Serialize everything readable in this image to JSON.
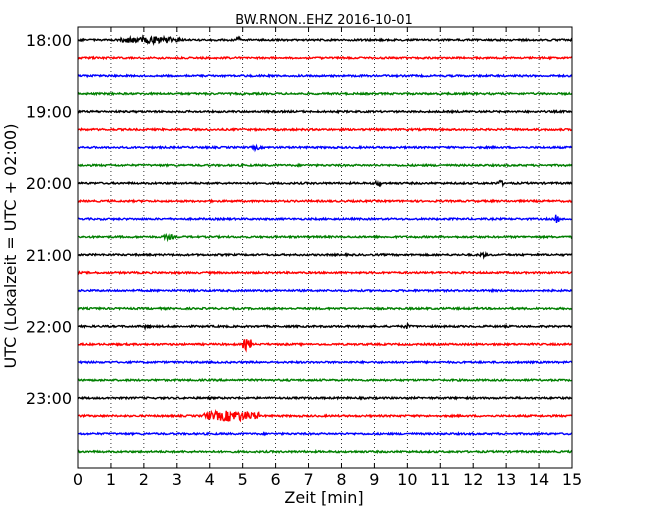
{
  "chart_data": {
    "type": "line",
    "title": "BW.RNON..EHZ 2016-10-01",
    "xlabel": "Zeit  [min]",
    "ylabel": "UTC (Lokalzeit = UTC + 02:00)",
    "xlim": [
      0,
      15
    ],
    "xticks": [
      "0",
      "1",
      "2",
      "3",
      "4",
      "5",
      "6",
      "7",
      "8",
      "9",
      "10",
      "11",
      "12",
      "13",
      "14",
      "15"
    ],
    "y_tick_labels": [
      {
        "row": 0,
        "label": "18:00"
      },
      {
        "row": 4,
        "label": "19:00"
      },
      {
        "row": 8,
        "label": "20:00"
      },
      {
        "row": 12,
        "label": "21:00"
      },
      {
        "row": 16,
        "label": "22:00"
      },
      {
        "row": 20,
        "label": "23:00"
      }
    ],
    "row_minutes": 15,
    "start_time": "18:00",
    "color_cycle": [
      "#000000",
      "#ff0000",
      "#0000ff",
      "#007f00"
    ],
    "grid": {
      "vertical_dotted": true
    },
    "traces": [
      {
        "start": "18:00",
        "color": "#000000",
        "events": [
          {
            "x0": 1.3,
            "x1": 3.1,
            "amp": 3
          },
          {
            "x0": 4.8,
            "x1": 4.95,
            "amp": 2
          }
        ]
      },
      {
        "start": "18:15",
        "color": "#ff0000",
        "events": []
      },
      {
        "start": "18:30",
        "color": "#0000ff",
        "events": []
      },
      {
        "start": "18:45",
        "color": "#007f00",
        "events": []
      },
      {
        "start": "19:00",
        "color": "#000000",
        "events": []
      },
      {
        "start": "19:15",
        "color": "#ff0000",
        "events": []
      },
      {
        "start": "19:30",
        "color": "#0000ff",
        "events": [
          {
            "x0": 5.3,
            "x1": 5.5,
            "amp": 2
          }
        ]
      },
      {
        "start": "19:45",
        "color": "#007f00",
        "events": []
      },
      {
        "start": "20:00",
        "color": "#000000",
        "events": [
          {
            "x0": 9.0,
            "x1": 9.2,
            "amp": 2.5
          },
          {
            "x0": 12.7,
            "x1": 12.9,
            "amp": 2.5
          }
        ]
      },
      {
        "start": "20:15",
        "color": "#ff0000",
        "events": []
      },
      {
        "start": "20:30",
        "color": "#0000ff",
        "events": [
          {
            "x0": 14.45,
            "x1": 14.6,
            "amp": 4
          }
        ]
      },
      {
        "start": "20:45",
        "color": "#007f00",
        "events": [
          {
            "x0": 2.6,
            "x1": 2.9,
            "amp": 2
          }
        ]
      },
      {
        "start": "21:00",
        "color": "#000000",
        "events": [
          {
            "x0": 12.2,
            "x1": 12.4,
            "amp": 2
          }
        ]
      },
      {
        "start": "21:15",
        "color": "#ff0000",
        "events": []
      },
      {
        "start": "21:30",
        "color": "#0000ff",
        "events": []
      },
      {
        "start": "21:45",
        "color": "#007f00",
        "events": []
      },
      {
        "start": "22:00",
        "color": "#000000",
        "events": [
          {
            "x0": 2.0,
            "x1": 2.2,
            "amp": 2
          },
          {
            "x0": 9.9,
            "x1": 10.1,
            "amp": 2
          }
        ]
      },
      {
        "start": "22:15",
        "color": "#ff0000",
        "events": [
          {
            "x0": 5.0,
            "x1": 5.3,
            "amp": 6
          }
        ]
      },
      {
        "start": "22:30",
        "color": "#0000ff",
        "events": []
      },
      {
        "start": "22:45",
        "color": "#007f00",
        "events": []
      },
      {
        "start": "23:00",
        "color": "#000000",
        "events": []
      },
      {
        "start": "23:15",
        "color": "#ff0000",
        "events": [
          {
            "x0": 3.8,
            "x1": 5.5,
            "amp": 5
          }
        ]
      },
      {
        "start": "23:30",
        "color": "#0000ff",
        "events": []
      },
      {
        "start": "23:45",
        "color": "#007f00",
        "events": []
      }
    ]
  }
}
